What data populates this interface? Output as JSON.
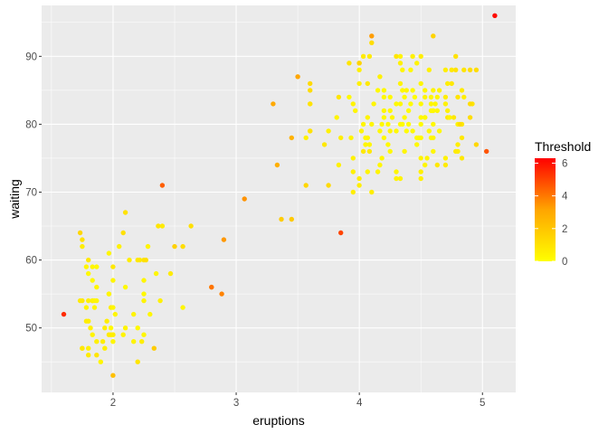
{
  "chart_data": {
    "type": "scatter",
    "xlabel": "eruptions",
    "ylabel": "waiting",
    "xlim": [
      1.42,
      5.27
    ],
    "ylim": [
      40.5,
      97.5
    ],
    "x_ticks": [
      2,
      3,
      4,
      5
    ],
    "y_ticks": [
      50,
      60,
      70,
      80,
      90
    ],
    "grid": true,
    "legend": {
      "title": "Threshold",
      "placement": "right",
      "ticks": [
        0,
        2,
        4,
        6
      ],
      "min": 0,
      "max": 6.3,
      "low_color": "#ffff00",
      "mid_color": "#ffa500",
      "high_color": "#ff0000"
    },
    "colors": {
      "panel_background": "#ebebeb",
      "grid_major": "#ffffff",
      "tick_label": "#4d4d4d"
    },
    "points": [
      [
        3.6,
        79,
        0.8
      ],
      [
        1.8,
        54,
        0.5
      ],
      [
        3.333,
        74,
        2.8
      ],
      [
        2.283,
        62,
        0.4
      ],
      [
        4.533,
        85,
        0.3
      ],
      [
        2.883,
        55,
        3.8
      ],
      [
        4.7,
        88,
        0.6
      ],
      [
        3.6,
        85,
        1.2
      ],
      [
        1.95,
        51,
        0.6
      ],
      [
        4.35,
        85,
        0.2
      ],
      [
        1.833,
        54,
        0.9
      ],
      [
        3.917,
        84,
        0.2
      ],
      [
        4.2,
        78,
        0.2
      ],
      [
        1.75,
        47,
        0.7
      ],
      [
        4.7,
        83,
        0.5
      ],
      [
        2.167,
        52,
        0.4
      ],
      [
        1.75,
        62,
        0.6
      ],
      [
        4.8,
        84,
        0.9
      ],
      [
        1.6,
        52,
        5.5
      ],
      [
        4.25,
        79,
        0.3
      ],
      [
        1.8,
        51,
        0.6
      ],
      [
        1.75,
        47,
        0.8
      ],
      [
        3.45,
        78,
        2.7
      ],
      [
        3.067,
        69,
        3.5
      ],
      [
        4.533,
        74,
        0.3
      ],
      [
        3.6,
        83,
        0.4
      ],
      [
        1.967,
        55,
        0.5
      ],
      [
        4.083,
        76,
        0.8
      ],
      [
        3.85,
        78,
        0.6
      ],
      [
        4.433,
        79,
        0.2
      ],
      [
        4.3,
        73,
        0.3
      ],
      [
        4.467,
        77,
        0.2
      ],
      [
        3.367,
        66,
        1.8
      ],
      [
        4.033,
        80,
        0.3
      ],
      [
        3.833,
        74,
        0.5
      ],
      [
        2.017,
        52,
        0.3
      ],
      [
        1.867,
        48,
        0.5
      ],
      [
        4.833,
        80,
        0.8
      ],
      [
        1.833,
        59,
        0.3
      ],
      [
        4.783,
        90,
        1.0
      ],
      [
        1.8,
        60,
        0.8
      ],
      [
        4.533,
        84,
        0.4
      ],
      [
        4.233,
        77,
        0.2
      ],
      [
        4.8,
        80,
        0.4
      ],
      [
        4.1,
        93,
        3.3
      ],
      [
        1.967,
        49,
        0.7
      ],
      [
        3.85,
        64,
        5.0
      ],
      [
        4.417,
        83,
        0.1
      ],
      [
        1.75,
        54,
        0.8
      ],
      [
        4.0,
        89,
        1.2
      ],
      [
        3.5,
        87,
        3.1
      ],
      [
        4.2,
        81,
        0.2
      ],
      [
        2.25,
        57,
        0.3
      ],
      [
        4.083,
        77,
        0.3
      ],
      [
        4.417,
        88,
        0.2
      ],
      [
        4.467,
        78,
        0.1
      ],
      [
        4.233,
        80,
        0.2
      ],
      [
        2.1,
        56,
        0.2
      ],
      [
        4.5,
        78,
        0.2
      ],
      [
        1.833,
        49,
        0.4
      ],
      [
        4.583,
        78,
        0.2
      ],
      [
        4.25,
        84,
        0.2
      ],
      [
        4.5,
        73,
        0.5
      ],
      [
        4.783,
        88,
        1.0
      ],
      [
        2.25,
        49,
        0.3
      ],
      [
        1.75,
        63,
        1.0
      ],
      [
        4.367,
        84,
        0.2
      ],
      [
        1.967,
        61,
        0.3
      ],
      [
        4.5,
        83,
        0.2
      ],
      [
        4.067,
        73,
        0.4
      ],
      [
        1.867,
        54,
        0.3
      ],
      [
        1.783,
        59,
        0.3
      ],
      [
        4.95,
        77,
        1.4
      ],
      [
        4.75,
        88,
        0.8
      ],
      [
        4.833,
        75,
        0.8
      ],
      [
        1.867,
        46,
        0.9
      ],
      [
        4.7,
        84,
        0.6
      ],
      [
        1.833,
        54,
        0.4
      ],
      [
        4.333,
        80,
        0.1
      ],
      [
        3.6,
        83,
        1.0
      ],
      [
        2.4,
        71,
        4.5
      ],
      [
        4.183,
        80,
        0.2
      ],
      [
        4.3,
        83,
        0.2
      ],
      [
        1.983,
        49,
        0.7
      ],
      [
        1.933,
        50,
        0.6
      ],
      [
        4.6,
        85,
        0.4
      ],
      [
        4.15,
        73,
        0.4
      ],
      [
        4.4,
        82,
        0.1
      ],
      [
        4.167,
        79,
        0.2
      ],
      [
        3.95,
        83,
        0.4
      ],
      [
        4.533,
        81,
        0.2
      ],
      [
        4.367,
        76,
        0.3
      ],
      [
        4.617,
        83,
        0.3
      ],
      [
        4.917,
        83,
        0.9
      ],
      [
        2.467,
        58,
        0.7
      ],
      [
        4.8,
        76,
        0.6
      ],
      [
        4.6,
        82,
        0.2
      ],
      [
        4.1,
        92,
        1.2
      ],
      [
        4.833,
        78,
        0.8
      ],
      [
        4.567,
        88,
        0.5
      ],
      [
        2.367,
        65,
        0.9
      ],
      [
        2.3,
        52,
        0.3
      ],
      [
        2.567,
        53,
        0.3
      ],
      [
        1.833,
        57,
        0.2
      ],
      [
        2.05,
        62,
        0.5
      ],
      [
        1.867,
        59,
        0.2
      ],
      [
        2.1,
        67,
        1.0
      ],
      [
        2.2,
        60,
        0.8
      ],
      [
        1.733,
        64,
        1.4
      ],
      [
        4.65,
        79,
        0.2
      ],
      [
        4.9,
        88,
        1.2
      ],
      [
        4.3,
        90,
        0.9
      ],
      [
        4.167,
        87,
        0.5
      ],
      [
        4.5,
        90,
        0.6
      ],
      [
        4.0,
        86,
        0.5
      ],
      [
        3.917,
        89,
        0.9
      ],
      [
        3.6,
        86,
        1.3
      ],
      [
        3.967,
        82,
        0.3
      ],
      [
        4.2,
        84,
        0.2
      ],
      [
        4.35,
        88,
        0.3
      ],
      [
        4.633,
        74,
        0.8
      ],
      [
        4.033,
        90,
        0.7
      ],
      [
        4.333,
        89,
        0.5
      ],
      [
        4.017,
        79,
        0.3
      ],
      [
        4.333,
        72,
        0.4
      ],
      [
        2.0,
        43,
        2.2
      ],
      [
        4.05,
        78,
        0.3
      ],
      [
        3.933,
        78,
        0.4
      ],
      [
        1.8,
        58,
        0.2
      ],
      [
        4.583,
        82,
        0.2
      ],
      [
        3.567,
        78,
        0.5
      ],
      [
        4.333,
        83,
        0.2
      ],
      [
        2.4,
        65,
        0.7
      ],
      [
        4.367,
        81,
        0.2
      ],
      [
        1.933,
        47,
        0.6
      ],
      [
        4.3,
        79,
        0.2
      ],
      [
        4.467,
        89,
        0.4
      ],
      [
        4.45,
        84,
        0.1
      ],
      [
        3.3,
        83,
        3.0
      ],
      [
        4.25,
        82,
        0.2
      ],
      [
        2.633,
        65,
        1.1
      ],
      [
        4.533,
        81,
        0.2
      ],
      [
        2.0,
        49,
        0.3
      ],
      [
        2.9,
        63,
        3.4
      ],
      [
        4.9,
        83,
        1.2
      ],
      [
        3.717,
        77,
        0.8
      ],
      [
        4.15,
        85,
        0.2
      ],
      [
        4.6,
        93,
        1.5
      ],
      [
        3.75,
        79,
        0.5
      ],
      [
        4.1,
        80,
        0.3
      ],
      [
        1.85,
        54,
        0.3
      ],
      [
        2.8,
        56,
        3.0
      ],
      [
        4.0,
        88,
        0.5
      ],
      [
        4.05,
        77,
        0.3
      ],
      [
        4.383,
        79,
        0.1
      ],
      [
        4.633,
        82,
        0.3
      ],
      [
        2.25,
        60,
        1.0
      ],
      [
        4.7,
        74,
        0.7
      ],
      [
        3.75,
        71,
        1.3
      ],
      [
        4.35,
        80,
        0.1
      ],
      [
        2.333,
        47,
        1.8
      ],
      [
        4.2,
        82,
        0.3
      ],
      [
        1.983,
        53,
        0.6
      ],
      [
        4.75,
        86,
        0.8
      ],
      [
        4.65,
        85,
        0.4
      ],
      [
        4.3,
        72,
        0.4
      ],
      [
        2.083,
        49,
        0.4
      ],
      [
        4.333,
        86,
        0.4
      ],
      [
        3.45,
        66,
        1.9
      ],
      [
        4.6,
        76,
        0.3
      ],
      [
        2.2,
        45,
        0.9
      ],
      [
        4.117,
        83,
        0.3
      ],
      [
        4.333,
        90,
        0.4
      ],
      [
        2.267,
        60,
        1.1
      ],
      [
        1.817,
        50,
        0.5
      ],
      [
        4.55,
        75,
        0.4
      ],
      [
        4.767,
        81,
        0.8
      ],
      [
        4.5,
        86,
        0.3
      ],
      [
        3.817,
        81,
        0.4
      ],
      [
        4.783,
        76,
        0.7
      ],
      [
        4.817,
        80,
        1.2
      ],
      [
        5.1,
        96,
        6.1
      ],
      [
        1.783,
        51,
        0.6
      ],
      [
        4.383,
        85,
        0.3
      ],
      [
        4.567,
        79,
        0.2
      ],
      [
        4.0,
        89,
        1.5
      ],
      [
        2.567,
        62,
        1.2
      ],
      [
        4.717,
        81,
        0.8
      ],
      [
        4.083,
        90,
        0.7
      ],
      [
        1.867,
        56,
        0.3
      ],
      [
        4.9,
        81,
        1.2
      ],
      [
        3.833,
        84,
        0.9
      ],
      [
        4.6,
        78,
        0.3
      ],
      [
        4.2,
        85,
        0.2
      ],
      [
        4.433,
        85,
        0.2
      ],
      [
        4.267,
        81,
        0.3
      ],
      [
        1.8,
        46,
        0.7
      ],
      [
        2.35,
        58,
        0.3
      ],
      [
        3.95,
        75,
        0.5
      ],
      [
        4.5,
        80,
        0.1
      ],
      [
        4.0,
        72,
        0.6
      ],
      [
        1.85,
        53,
        0.4
      ],
      [
        2.8,
        56,
        4.1
      ],
      [
        4.733,
        81,
        0.4
      ],
      [
        4.583,
        83,
        0.3
      ],
      [
        2.217,
        60,
        0.8
      ],
      [
        5.033,
        76,
        4.7
      ],
      [
        2.0,
        59,
        0.8
      ],
      [
        4.4,
        80,
        0.1
      ],
      [
        4.067,
        86,
        0.8
      ],
      [
        1.983,
        50,
        0.2
      ],
      [
        4.7,
        75,
        0.5
      ],
      [
        1.917,
        48,
        0.6
      ],
      [
        2.25,
        55,
        0.2
      ],
      [
        2.25,
        54,
        0.4
      ],
      [
        2.2,
        50,
        0.2
      ],
      [
        4.717,
        86,
        0.6
      ],
      [
        4.1,
        70,
        0.6
      ],
      [
        3.6,
        79,
        1.0
      ],
      [
        3.95,
        70,
        0.6
      ],
      [
        2.233,
        48,
        0.6
      ],
      [
        4.6,
        82,
        0.2
      ],
      [
        4.833,
        85,
        0.7
      ],
      [
        4.5,
        81,
        0.2
      ],
      [
        4.067,
        81,
        0.4
      ],
      [
        2.0,
        49,
        0.6
      ],
      [
        4.583,
        84,
        0.3
      ],
      [
        2.0,
        57,
        0.3
      ],
      [
        4.6,
        80,
        0.2
      ],
      [
        1.783,
        53,
        0.4
      ],
      [
        4.167,
        74,
        0.3
      ],
      [
        4.033,
        76,
        0.8
      ],
      [
        4.85,
        84,
        0.6
      ],
      [
        4.633,
        84,
        0.3
      ],
      [
        1.967,
        55,
        0.3
      ],
      [
        4.483,
        78,
        0.2
      ],
      [
        2.0,
        48,
        0.3
      ],
      [
        4.067,
        78,
        0.3
      ],
      [
        2.5,
        62,
        1.6
      ],
      [
        3.95,
        73,
        0.5
      ],
      [
        1.733,
        54,
        0.7
      ],
      [
        4.183,
        75,
        0.3
      ],
      [
        4.717,
        82,
        0.5
      ],
      [
        4.85,
        88,
        0.9
      ],
      [
        1.8,
        47,
        0.5
      ],
      [
        2.1,
        50,
        0.4
      ],
      [
        1.9,
        45,
        0.3
      ],
      [
        4.433,
        90,
        0.5
      ],
      [
        2.383,
        54,
        0.5
      ],
      [
        4.5,
        75,
        0.4
      ],
      [
        4.95,
        88,
        1.2
      ],
      [
        2.133,
        60,
        0.6
      ],
      [
        3.567,
        71,
        1.4
      ],
      [
        4.0,
        71,
        0.6
      ],
      [
        4.5,
        72,
        0.5
      ],
      [
        2.0,
        53,
        0.3
      ],
      [
        4.25,
        76,
        0.2
      ],
      [
        2.167,
        48,
        0.4
      ],
      [
        4.8,
        77,
        0.6
      ],
      [
        2.083,
        64,
        1.1
      ]
    ]
  }
}
